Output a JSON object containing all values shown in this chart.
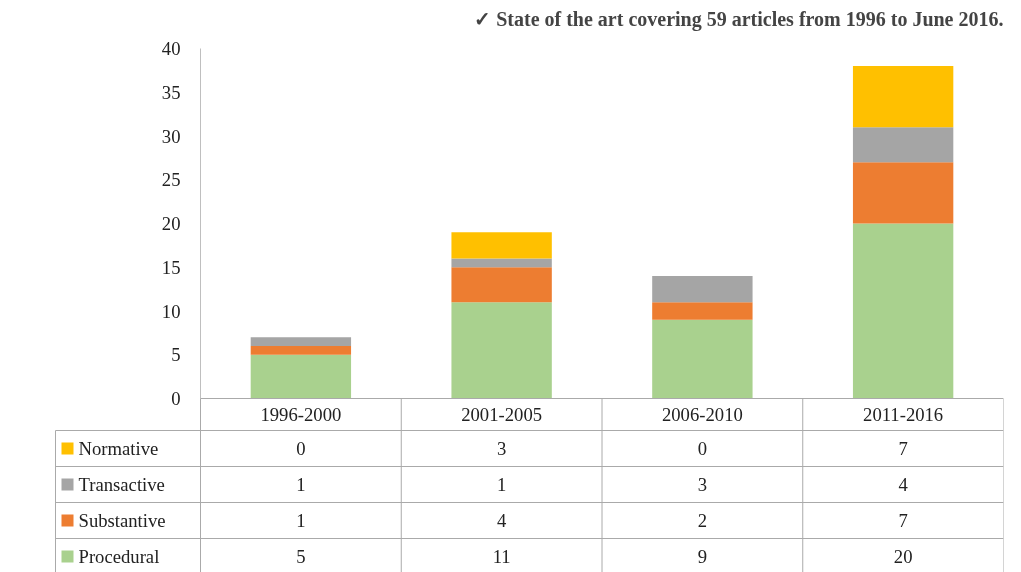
{
  "chart_data": {
    "type": "bar",
    "title": "✓ State of the art covering 59 articles from 1996 to June 2016.",
    "categories": [
      "1996-2000",
      "2001-2005",
      "2006-2010",
      "2011-2016"
    ],
    "stacked": true,
    "series": [
      {
        "name": "Procedural",
        "color": "#a9d18e",
        "values": [
          5,
          11,
          9,
          20
        ]
      },
      {
        "name": "Substantive",
        "color": "#ed7d31",
        "values": [
          1,
          4,
          2,
          7
        ]
      },
      {
        "name": "Transactive",
        "color": "#a5a5a5",
        "values": [
          1,
          1,
          3,
          4
        ]
      },
      {
        "name": "Normative",
        "color": "#ffc000",
        "values": [
          0,
          3,
          0,
          7
        ]
      }
    ],
    "ylim": [
      0,
      40
    ],
    "yticks": [
      0,
      5,
      10,
      15,
      20,
      25,
      30,
      35,
      40
    ],
    "grid": false,
    "data_labels": true,
    "legend": "bottom"
  }
}
